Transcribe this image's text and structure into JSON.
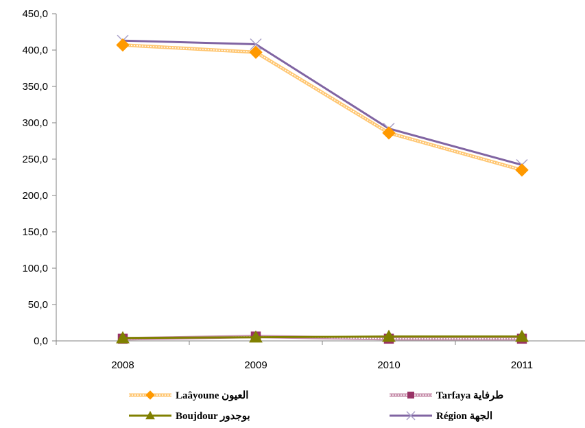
{
  "chart_data": {
    "type": "line",
    "categories": [
      "2008",
      "2009",
      "2010",
      "2011"
    ],
    "ylim": [
      0,
      450
    ],
    "y_ticks": [
      0,
      50,
      100,
      150,
      200,
      250,
      300,
      350,
      400,
      450
    ],
    "y_tick_labels": [
      "0,0",
      "50,0",
      "100,0",
      "150,0",
      "200,0",
      "250,0",
      "300,0",
      "350,0",
      "400,0",
      "450,0"
    ],
    "grid": false,
    "legend_position": "bottom",
    "series": [
      {
        "name": "Laâyoune العيون",
        "values": [
          407,
          397,
          286,
          235
        ],
        "color": "#ff9900",
        "marker": "diamond",
        "style": "double"
      },
      {
        "name": "Tarfaya طرفاية",
        "values": [
          3,
          6,
          3,
          3
        ],
        "color": "#993366",
        "marker": "square",
        "style": "double"
      },
      {
        "name": "Boujdour بوجدور",
        "values": [
          4,
          5,
          6,
          6
        ],
        "color": "#808000",
        "marker": "triangle",
        "style": "solid"
      },
      {
        "name": "Région الجهة",
        "values": [
          413,
          408,
          292,
          242
        ],
        "color": "#8064a2",
        "marker": "x",
        "style": "solid"
      }
    ]
  }
}
